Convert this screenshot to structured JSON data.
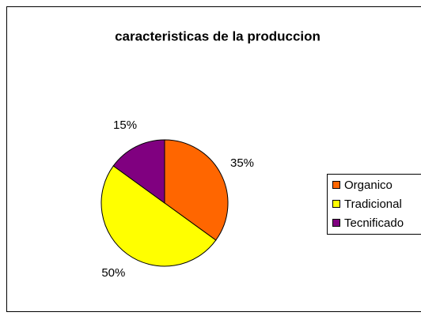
{
  "chart_data": {
    "type": "pie",
    "title": "caracteristicas de la produccion",
    "categories": [
      "Organico",
      "Tradicional",
      "Tecnificado"
    ],
    "values": [
      35,
      50,
      15
    ],
    "value_labels": [
      "35%",
      "50%",
      "15%"
    ],
    "colors": [
      "#ff6600",
      "#ffff00",
      "#800080"
    ],
    "legend": "right"
  }
}
